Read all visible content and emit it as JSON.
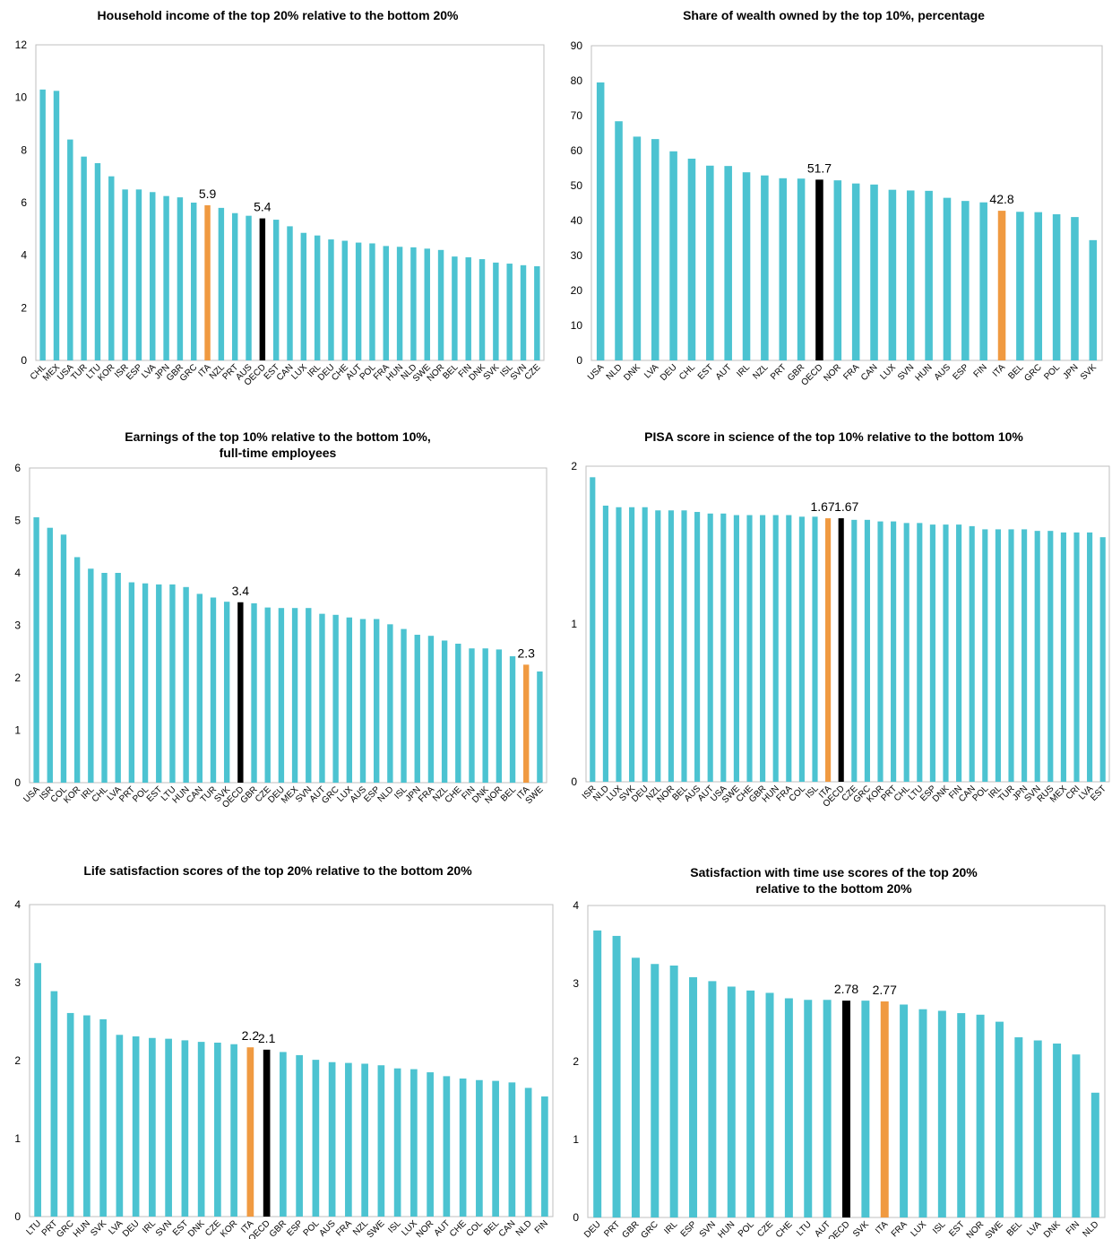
{
  "colors": {
    "bar": "#4cc3d1",
    "ita": "#f09a41",
    "oecd": "#000000",
    "axis": "#bfbfbf"
  },
  "chart_data": [
    {
      "type": "bar",
      "title": "Household income of the top 20% relative to the bottom 20%",
      "title_lines": [
        "Household income of the top 20% relative to the bottom 20%"
      ],
      "ylim": [
        0,
        12
      ],
      "yticks": [
        0,
        2,
        4,
        6,
        8,
        10,
        12
      ],
      "categories": [
        "CHL",
        "MEX",
        "USA",
        "TUR",
        "LTU",
        "KOR",
        "ISR",
        "ESP",
        "LVA",
        "JPN",
        "GBR",
        "GRC",
        "ITA",
        "NZL",
        "PRT",
        "AUS",
        "OECD",
        "EST",
        "CAN",
        "LUX",
        "IRL",
        "DEU",
        "CHE",
        "AUT",
        "POL",
        "FRA",
        "HUN",
        "NLD",
        "SWE",
        "NOR",
        "BEL",
        "FIN",
        "DNK",
        "SVK",
        "ISL",
        "SVN",
        "CZE"
      ],
      "values": [
        10.3,
        10.25,
        8.4,
        7.75,
        7.5,
        7.0,
        6.5,
        6.5,
        6.4,
        6.25,
        6.2,
        6.0,
        5.9,
        5.8,
        5.6,
        5.5,
        5.4,
        5.35,
        5.1,
        4.85,
        4.75,
        4.6,
        4.55,
        4.48,
        4.45,
        4.35,
        4.32,
        4.3,
        4.25,
        4.2,
        3.95,
        3.92,
        3.85,
        3.72,
        3.68,
        3.62,
        3.58
      ],
      "labels": {
        "ITA": "5.9",
        "OECD": "5.4"
      }
    },
    {
      "type": "bar",
      "title": "Share of wealth owned by the top 10%, percentage",
      "title_lines": [
        "Share of wealth owned by the top 10%, percentage"
      ],
      "ylim": [
        0,
        90
      ],
      "yticks": [
        0,
        10,
        20,
        30,
        40,
        50,
        60,
        70,
        80,
        90
      ],
      "categories": [
        "USA",
        "NLD",
        "DNK",
        "LVA",
        "DEU",
        "CHL",
        "EST",
        "AUT",
        "IRL",
        "NZL",
        "PRT",
        "GBR",
        "OECD",
        "NOR",
        "FRA",
        "CAN",
        "LUX",
        "SVN",
        "HUN",
        "AUS",
        "ESP",
        "FIN",
        "ITA",
        "BEL",
        "GRC",
        "POL",
        "JPN",
        "SVK"
      ],
      "values": [
        79.5,
        68.4,
        64.0,
        63.3,
        59.8,
        57.7,
        55.7,
        55.6,
        53.8,
        52.9,
        52.1,
        52.0,
        51.7,
        51.5,
        50.6,
        50.3,
        48.8,
        48.6,
        48.5,
        46.5,
        45.6,
        45.2,
        42.8,
        42.5,
        42.4,
        41.8,
        41.0,
        34.4
      ],
      "labels": {
        "OECD": "51.7",
        "ITA": "42.8"
      }
    },
    {
      "type": "bar",
      "title": "Earnings of the top 10% relative to the bottom 10%, full-time employees",
      "title_lines": [
        "Earnings of the top 10% relative to the bottom 10%,",
        "full-time employees"
      ],
      "ylim": [
        0,
        6
      ],
      "yticks": [
        0,
        1,
        2,
        3,
        4,
        5,
        6
      ],
      "categories": [
        "USA",
        "ISR",
        "COL",
        "KOR",
        "IRL",
        "CHL",
        "LVA",
        "PRT",
        "POL",
        "EST",
        "LTU",
        "HUN",
        "CAN",
        "TUR",
        "SVK",
        "OECD",
        "GBR",
        "CZE",
        "DEU",
        "MEX",
        "SVN",
        "AUT",
        "GRC",
        "LUX",
        "AUS",
        "ESP",
        "NLD",
        "ISL",
        "JPN",
        "FRA",
        "NZL",
        "CHE",
        "FIN",
        "DNK",
        "NOR",
        "BEL",
        "ITA",
        "SWE"
      ],
      "values": [
        5.06,
        4.86,
        4.73,
        4.3,
        4.08,
        4.0,
        4.0,
        3.82,
        3.8,
        3.78,
        3.78,
        3.73,
        3.6,
        3.53,
        3.45,
        3.44,
        3.42,
        3.34,
        3.33,
        3.33,
        3.33,
        3.22,
        3.2,
        3.15,
        3.12,
        3.12,
        3.02,
        2.93,
        2.82,
        2.8,
        2.71,
        2.65,
        2.56,
        2.56,
        2.54,
        2.41,
        2.25,
        2.12
      ],
      "labels": {
        "OECD": "3.4",
        "ITA": "2.3"
      }
    },
    {
      "type": "bar",
      "title": "PISA score in science of the top 10% relative to the bottom 10%",
      "title_lines": [
        "PISA score in science of the top 10% relative to the bottom 10%"
      ],
      "ylim": [
        0,
        2
      ],
      "yticks": [
        0,
        1,
        2
      ],
      "categories": [
        "ISR",
        "NLD",
        "LUX",
        "SVK",
        "DEU",
        "NZL",
        "NOR",
        "BEL",
        "AUS",
        "AUT",
        "USA",
        "SWE",
        "CHE",
        "GBR",
        "HUN",
        "FRA",
        "COL",
        "ISL",
        "ITA",
        "OECD",
        "CZE",
        "GRC",
        "KOR",
        "PRT",
        "CHL",
        "LTU",
        "ESP",
        "DNK",
        "FIN",
        "CAN",
        "POL",
        "IRL",
        "TUR",
        "JPN",
        "SVN",
        "RUS",
        "MEX",
        "CRI",
        "LVA",
        "EST"
      ],
      "values": [
        1.93,
        1.75,
        1.74,
        1.74,
        1.74,
        1.72,
        1.72,
        1.72,
        1.71,
        1.7,
        1.7,
        1.69,
        1.69,
        1.69,
        1.69,
        1.69,
        1.68,
        1.68,
        1.67,
        1.67,
        1.66,
        1.66,
        1.65,
        1.65,
        1.64,
        1.64,
        1.63,
        1.63,
        1.63,
        1.62,
        1.6,
        1.6,
        1.6,
        1.6,
        1.59,
        1.59,
        1.58,
        1.58,
        1.58,
        1.55
      ],
      "labels": {
        "ITA": "1.67",
        "OECD": "1.67"
      }
    },
    {
      "type": "bar",
      "title": "Life satisfaction scores of the top 20% relative to the bottom 20%",
      "title_lines": [
        "Life satisfaction scores of the top 20% relative to the bottom 20%"
      ],
      "ylim": [
        0,
        4
      ],
      "yticks": [
        0,
        1,
        2,
        3,
        4
      ],
      "categories": [
        "LTU",
        "PRT",
        "GRC",
        "HUN",
        "SVK",
        "LVA",
        "DEU",
        "IRL",
        "SVN",
        "EST",
        "DNK",
        "CZE",
        "KOR",
        "ITA",
        "OECD",
        "GBR",
        "ESP",
        "POL",
        "AUS",
        "FRA",
        "NZL",
        "SWE",
        "ISL",
        "LUX",
        "NOR",
        "AUT",
        "CHE",
        "COL",
        "BEL",
        "CAN",
        "NLD",
        "FIN"
      ],
      "values": [
        3.25,
        2.89,
        2.61,
        2.58,
        2.53,
        2.33,
        2.31,
        2.29,
        2.28,
        2.26,
        2.24,
        2.23,
        2.21,
        2.17,
        2.14,
        2.11,
        2.07,
        2.01,
        1.98,
        1.97,
        1.96,
        1.94,
        1.9,
        1.89,
        1.85,
        1.8,
        1.77,
        1.75,
        1.74,
        1.72,
        1.65,
        1.54
      ],
      "labels": {
        "ITA": "2.2",
        "OECD": "2.1"
      }
    },
    {
      "type": "bar",
      "title": "Satisfaction with time use scores of the top 20% relative to the bottom 20%",
      "title_lines": [
        "Satisfaction with time use scores of the top 20%",
        "relative to the bottom 20%"
      ],
      "ylim": [
        0,
        4
      ],
      "yticks": [
        0,
        1,
        2,
        3,
        4
      ],
      "categories": [
        "DEU",
        "PRT",
        "GBR",
        "GRC",
        "IRL",
        "ESP",
        "SVN",
        "HUN",
        "POL",
        "CZE",
        "CHE",
        "LTU",
        "AUT",
        "OECD",
        "SVK",
        "ITA",
        "FRA",
        "LUX",
        "ISL",
        "EST",
        "NOR",
        "SWE",
        "BEL",
        "LVA",
        "DNK",
        "FIN",
        "NLD"
      ],
      "values": [
        3.68,
        3.61,
        3.33,
        3.25,
        3.23,
        3.08,
        3.03,
        2.96,
        2.91,
        2.88,
        2.81,
        2.79,
        2.79,
        2.78,
        2.78,
        2.77,
        2.73,
        2.67,
        2.65,
        2.62,
        2.6,
        2.51,
        2.31,
        2.27,
        2.23,
        2.09,
        1.6
      ],
      "labels": {
        "OECD": "2.78",
        "ITA": "2.77"
      }
    }
  ]
}
